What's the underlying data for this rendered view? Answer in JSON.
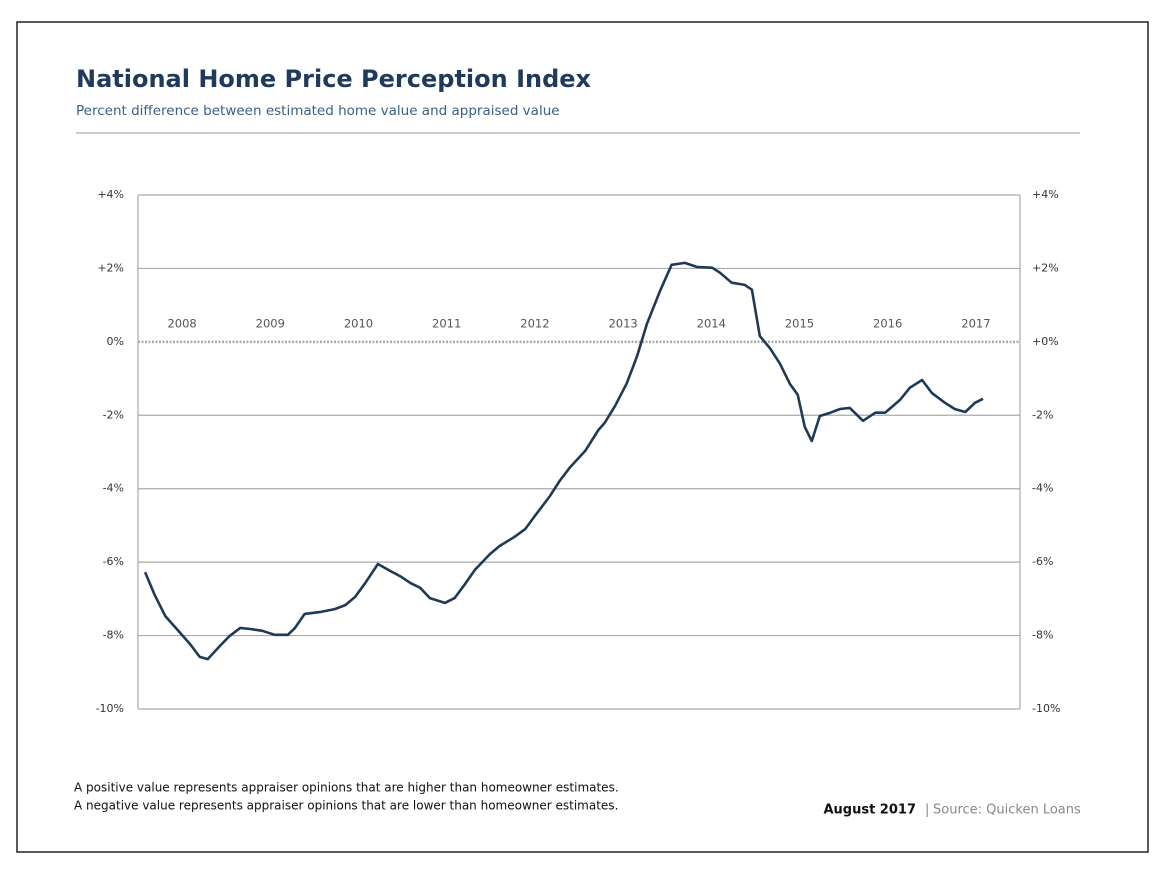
{
  "chart_data": {
    "type": "line",
    "title": "National Home Price Perception Index",
    "subtitle": "Percent difference between estimated home value and appraised value",
    "notes": [
      "A positive value represents appraiser opinions that are higher than homeowner estimates.",
      "A negative value represents appraiser opinions that are lower than homeowner estimates."
    ],
    "date": "August 2017",
    "source": "Source: Quicken Loans",
    "xlim": [
      2008,
      2018
    ],
    "xticks": [
      {
        "value": 2008.5,
        "label": "2008"
      },
      {
        "value": 2009.5,
        "label": "2009"
      },
      {
        "value": 2010.5,
        "label": "2010"
      },
      {
        "value": 2011.5,
        "label": "2011"
      },
      {
        "value": 2012.5,
        "label": "2012"
      },
      {
        "value": 2013.5,
        "label": "2013"
      },
      {
        "value": 2014.5,
        "label": "2014"
      },
      {
        "value": 2015.5,
        "label": "2015"
      },
      {
        "value": 2016.5,
        "label": "2016"
      },
      {
        "value": 2017.5,
        "label": "2017"
      }
    ],
    "ylim": [
      -10,
      4
    ],
    "yticks": [
      {
        "value": 4,
        "label": "+4%"
      },
      {
        "value": 2,
        "label": "+2%"
      },
      {
        "value": 0,
        "label": "0%"
      },
      {
        "value": -2,
        "label": "-2%"
      },
      {
        "value": -4,
        "label": "-4%"
      },
      {
        "value": -6,
        "label": "-6%"
      },
      {
        "value": -8,
        "label": "-8%"
      },
      {
        "value": -10,
        "label": "-10%"
      }
    ],
    "y2lim": [
      -10,
      4
    ],
    "y2ticks": [
      {
        "value": 4,
        "label": "+4%"
      },
      {
        "value": 2,
        "label": "+2%"
      },
      {
        "value": 0,
        "label": "+0%"
      },
      {
        "value": -2,
        "label": "-2%"
      },
      {
        "value": -4,
        "label": "-4%"
      },
      {
        "value": -6,
        "label": "-6%"
      },
      {
        "value": -8,
        "label": "-8%"
      },
      {
        "value": -10,
        "label": "-10%"
      }
    ],
    "grid": true,
    "color": "#1f3a55",
    "x": [
      2008.08,
      2008.19,
      2008.31,
      2008.48,
      2008.59,
      2008.7,
      2008.79,
      2008.93,
      2009.04,
      2009.16,
      2009.27,
      2009.41,
      2009.55,
      2009.7,
      2009.78,
      2009.89,
      2010.06,
      2010.23,
      2010.35,
      2010.46,
      2010.57,
      2010.72,
      2010.86,
      2010.97,
      2011.09,
      2011.2,
      2011.31,
      2011.48,
      2011.59,
      2011.71,
      2011.82,
      2011.99,
      2012.1,
      2012.27,
      2012.39,
      2012.5,
      2012.67,
      2012.78,
      2012.9,
      2013.07,
      2013.22,
      2013.29,
      2013.41,
      2013.54,
      2013.66,
      2013.77,
      2013.92,
      2014.05,
      2014.2,
      2014.34,
      2014.51,
      2014.6,
      2014.73,
      2014.88,
      2014.96,
      2015.05,
      2015.17,
      2015.28,
      2015.39,
      2015.48,
      2015.56,
      2015.64,
      2015.73,
      2015.85,
      2015.96,
      2016.07,
      2016.22,
      2016.36,
      2016.47,
      2016.64,
      2016.75,
      2016.89,
      2017.0,
      2017.15,
      2017.26,
      2017.38,
      2017.49,
      2017.58
    ],
    "values": [
      -6.27,
      -6.9,
      -7.47,
      -7.93,
      -8.23,
      -8.58,
      -8.64,
      -8.28,
      -8.01,
      -7.79,
      -7.82,
      -7.87,
      -7.98,
      -7.98,
      -7.79,
      -7.41,
      -7.36,
      -7.28,
      -7.17,
      -6.95,
      -6.59,
      -6.05,
      -6.24,
      -6.38,
      -6.57,
      -6.7,
      -6.98,
      -7.11,
      -6.98,
      -6.59,
      -6.21,
      -5.78,
      -5.56,
      -5.31,
      -5.1,
      -4.74,
      -4.2,
      -3.79,
      -3.41,
      -2.97,
      -2.4,
      -2.21,
      -1.74,
      -1.14,
      -0.38,
      0.49,
      1.39,
      2.1,
      2.15,
      2.04,
      2.02,
      1.88,
      1.61,
      1.55,
      1.42,
      0.16,
      -0.19,
      -0.6,
      -1.14,
      -1.44,
      -2.32,
      -2.7,
      -2.02,
      -1.93,
      -1.83,
      -1.8,
      -2.15,
      -1.93,
      -1.93,
      -1.58,
      -1.25,
      -1.04,
      -1.39,
      -1.66,
      -1.83,
      -1.91,
      -1.66,
      -1.55
    ]
  }
}
